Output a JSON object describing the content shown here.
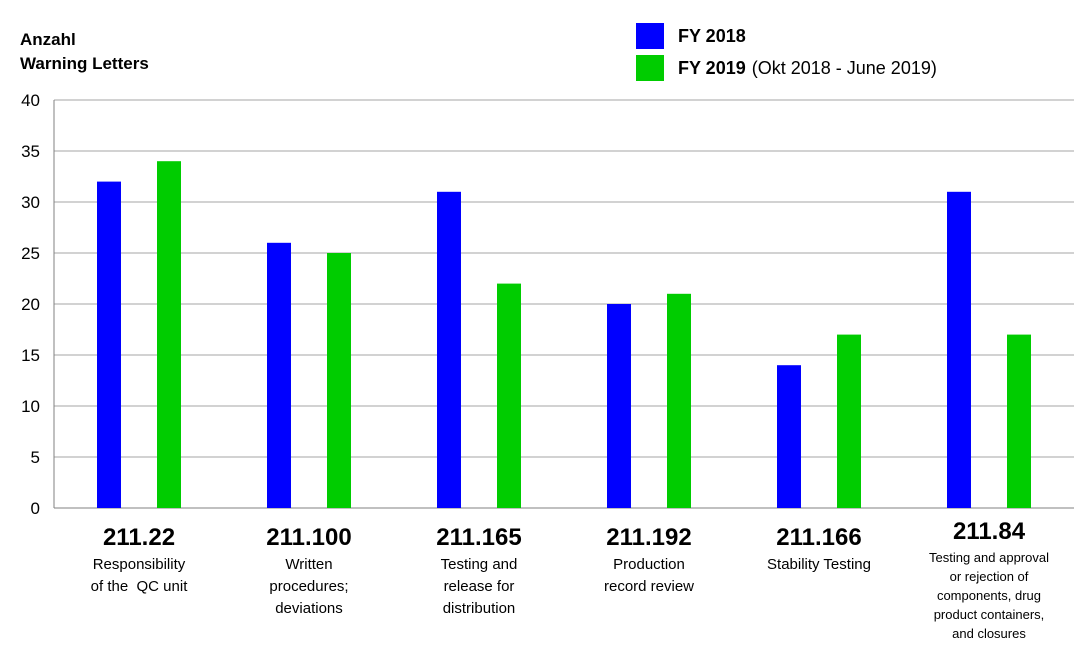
{
  "chart_data": {
    "type": "bar",
    "ylabel_line1": "Anzahl",
    "ylabel_line2": "Warning Letters",
    "ylim": [
      0,
      40
    ],
    "yticks": [
      0,
      5,
      10,
      15,
      20,
      25,
      30,
      35,
      40
    ],
    "grid": true,
    "legend_position": "top-right",
    "categories": [
      {
        "code": "211.22",
        "desc": [
          "Responsibility",
          "of the  QC unit"
        ]
      },
      {
        "code": "211.100",
        "desc": [
          "Written",
          "procedures;",
          "deviations"
        ]
      },
      {
        "code": "211.165",
        "desc": [
          "Testing and",
          "release for",
          "distribution"
        ]
      },
      {
        "code": "211.192",
        "desc": [
          "Production",
          "record review"
        ]
      },
      {
        "code": "211.166",
        "desc": [
          "Stability Testing"
        ]
      },
      {
        "code": "211.84",
        "desc": [
          "Testing and approval",
          "or rejection of",
          "components, drug",
          "product containers,",
          "and closures"
        ]
      }
    ],
    "series": [
      {
        "name": "FY 2018",
        "note": "",
        "color": "#0000ff",
        "values": [
          32,
          26,
          31,
          20,
          14,
          31
        ]
      },
      {
        "name": "FY 2019",
        "note": "(Okt 2018 - June 2019)",
        "color": "#00cc00",
        "values": [
          34,
          25,
          22,
          21,
          17,
          17
        ]
      }
    ]
  }
}
